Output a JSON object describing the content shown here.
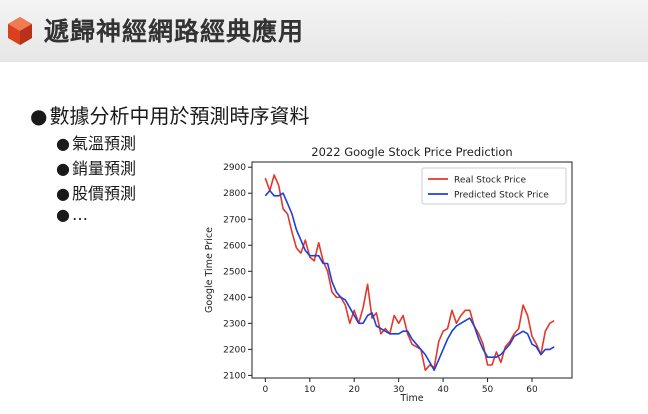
{
  "slide": {
    "title": "遞歸神經網路經典應用",
    "bullets": {
      "main": "數據分析中用於預測時序資料",
      "sub": [
        "氣溫預測",
        "銷量預測",
        "股價預測",
        "…"
      ]
    }
  },
  "colors": {
    "accent": "#d9411e",
    "real_series": "#e0392b",
    "predicted_series": "#1f3fd8"
  },
  "icons": {
    "logo": "hexagon-cube-icon",
    "bullet": "filled-circle-bullet"
  },
  "chart_data": {
    "type": "line",
    "title": "2022 Google Stock Price Prediction",
    "xlabel": "Time",
    "ylabel": "Google Time Price",
    "xlim": [
      -3,
      69
    ],
    "ylim": [
      2090,
      2920
    ],
    "x_ticks": [
      0,
      10,
      20,
      30,
      40,
      50,
      60
    ],
    "y_ticks": [
      2100,
      2200,
      2300,
      2400,
      2500,
      2600,
      2700,
      2800,
      2900
    ],
    "legend_position": "top-right",
    "grid": false,
    "series": [
      {
        "name": "Real Stock Price",
        "color": "#e0392b",
        "values": [
          2858,
          2810,
          2870,
          2830,
          2740,
          2720,
          2650,
          2590,
          2570,
          2620,
          2555,
          2540,
          2610,
          2540,
          2500,
          2420,
          2400,
          2400,
          2370,
          2300,
          2350,
          2300,
          2360,
          2450,
          2320,
          2340,
          2260,
          2280,
          2260,
          2330,
          2300,
          2330,
          2260,
          2220,
          2210,
          2200,
          2120,
          2140,
          2130,
          2230,
          2270,
          2280,
          2350,
          2300,
          2330,
          2350,
          2350,
          2290,
          2260,
          2220,
          2140,
          2140,
          2190,
          2150,
          2210,
          2230,
          2260,
          2280,
          2370,
          2330,
          2250,
          2220,
          2180,
          2270,
          2300,
          2310
        ]
      },
      {
        "name": "Predicted Stock Price",
        "color": "#1f3fd8",
        "values": [
          2790,
          2810,
          2790,
          2790,
          2800,
          2760,
          2720,
          2660,
          2620,
          2580,
          2560,
          2560,
          2560,
          2530,
          2530,
          2460,
          2420,
          2400,
          2390,
          2360,
          2330,
          2300,
          2300,
          2330,
          2340,
          2290,
          2280,
          2270,
          2260,
          2260,
          2260,
          2270,
          2270,
          2240,
          2220,
          2200,
          2180,
          2150,
          2120,
          2160,
          2200,
          2240,
          2270,
          2290,
          2300,
          2310,
          2320,
          2290,
          2240,
          2200,
          2170,
          2170,
          2170,
          2180,
          2200,
          2220,
          2250,
          2260,
          2270,
          2260,
          2220,
          2210,
          2180,
          2200,
          2200,
          2210
        ]
      }
    ]
  }
}
